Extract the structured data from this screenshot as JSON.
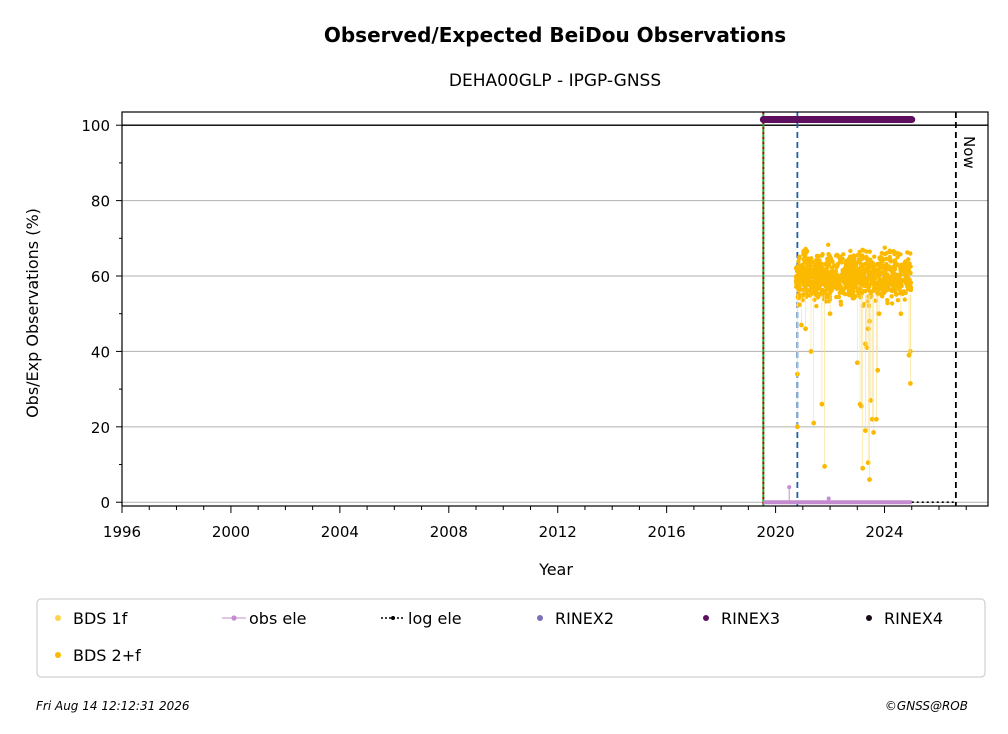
{
  "chart_data": {
    "type": "scatter",
    "title": "Observed/Expected BeiDou Observations",
    "subtitle": "DEHA00GLP - IPGP-GNSS",
    "xlabel": "Year",
    "ylabel": "Obs/Exp Observations (%)",
    "xlim": [
      1996,
      2027.8
    ],
    "ylim": [
      -1,
      103.5
    ],
    "x_ticks": [
      1996,
      2000,
      2004,
      2008,
      2012,
      2016,
      2020,
      2024
    ],
    "y_ticks": [
      0,
      20,
      40,
      60,
      80,
      100
    ],
    "grid": "horizontal",
    "reference_line_y": 100,
    "vlines": [
      {
        "x": 2019.55,
        "style": "solid",
        "color": "#2ca02c"
      },
      {
        "x": 2019.55,
        "style": "dotted",
        "color": "#c00000"
      },
      {
        "x": 2020.8,
        "style": "dashed",
        "color": "#1f5fa8"
      },
      {
        "x": 2026.62,
        "style": "dashed",
        "color": "#000000",
        "label": "Now"
      }
    ],
    "series": [
      {
        "name": "BDS 1f",
        "color": "#fdd24f",
        "values": []
      },
      {
        "name": "BDS 2+f",
        "color": "#fbb900",
        "band": {
          "x_start": 2020.75,
          "x_end": 2025.0,
          "y_center": 60,
          "y_spread": 6
        },
        "outliers": [
          [
            2020.8,
            34
          ],
          [
            2020.8,
            20
          ],
          [
            2020.95,
            47
          ],
          [
            2021.1,
            46
          ],
          [
            2021.3,
            40
          ],
          [
            2021.4,
            21
          ],
          [
            2021.7,
            26
          ],
          [
            2021.8,
            9.5
          ],
          [
            2022.0,
            50
          ],
          [
            2022.7,
            55
          ],
          [
            2023.0,
            37
          ],
          [
            2023.1,
            26
          ],
          [
            2023.15,
            25.5
          ],
          [
            2023.2,
            9
          ],
          [
            2023.3,
            42
          ],
          [
            2023.35,
            41
          ],
          [
            2023.4,
            46
          ],
          [
            2023.45,
            48
          ],
          [
            2023.5,
            27
          ],
          [
            2023.55,
            22
          ],
          [
            2023.6,
            18.5
          ],
          [
            2023.7,
            22
          ],
          [
            2023.75,
            35
          ],
          [
            2023.8,
            50
          ],
          [
            2023.3,
            19
          ],
          [
            2023.4,
            10.5
          ],
          [
            2023.45,
            6
          ],
          [
            2024.6,
            50
          ],
          [
            2024.95,
            40
          ],
          [
            2024.95,
            31.5
          ],
          [
            2024.9,
            39
          ]
        ]
      },
      {
        "name": "obs ele",
        "color": "#c58bd0",
        "values": [
          [
            2019.55,
            0
          ],
          [
            2020.5,
            4
          ],
          [
            2021.95,
            1
          ],
          [
            2025.0,
            0
          ]
        ]
      },
      {
        "name": "log ele",
        "color": "#000000",
        "values": [
          [
            2019.55,
            0
          ],
          [
            2026.62,
            0
          ]
        ]
      },
      {
        "name": "RINEX2",
        "color": "#7b6fb8",
        "values": []
      },
      {
        "name": "RINEX3",
        "color": "#5d0f5d",
        "values": [
          [
            2019.55,
            101.5
          ],
          [
            2025.0,
            101.5
          ]
        ]
      },
      {
        "name": "RINEX4",
        "color": "#1a0a1a",
        "values": []
      }
    ],
    "legend_position": "bottom"
  },
  "footer": {
    "timestamp": "Fri Aug 14 12:12:31 2026",
    "credit": "©GNSS@ROB"
  }
}
